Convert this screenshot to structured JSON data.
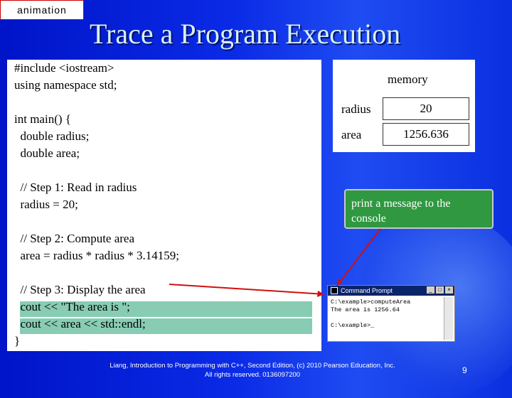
{
  "animation_tag": "animation",
  "title": "Trace a Program Execution",
  "code_lines": [
    "#include <iostream>",
    "using namespace std;",
    "",
    "int main() {",
    "  double radius;",
    "  double area;",
    "",
    "  // Step 1: Read in radius",
    "  radius = 20;",
    "",
    "  // Step 2: Compute area",
    "  area = radius * radius * 3.14159;",
    "",
    "  // Step 3: Display the area",
    "  cout << \"The area is \";",
    "  cout << area << std::endl;",
    "}"
  ],
  "memory": {
    "title": "memory",
    "vars": [
      {
        "name": "radius",
        "value": "20"
      },
      {
        "name": "area",
        "value": "1256.636"
      }
    ]
  },
  "callout": "print a message to the console",
  "console": {
    "title": "Command Prompt",
    "lines": [
      "C:\\example>computeArea",
      "The area is 1256.64",
      "",
      "C:\\example>_"
    ]
  },
  "footer": {
    "line1": "Liang, Introduction to Programming with C++, Second Edition, (c) 2010 Pearson Education, Inc.",
    "line2": "All rights reserved. 0136097200"
  },
  "page_number": "9",
  "colors": {
    "highlight": "#88ccb4",
    "callout": "#2f9840",
    "arrow": "#d01010"
  }
}
